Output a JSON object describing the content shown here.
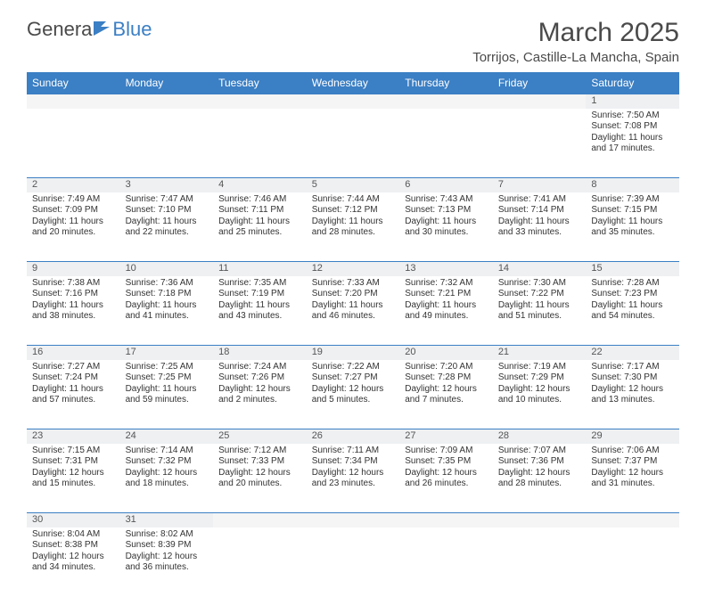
{
  "logo": {
    "part1": "Genera",
    "part2": "Blue"
  },
  "title": "March 2025",
  "location": "Torrijos, Castille-La Mancha, Spain",
  "colors": {
    "header_bg": "#3b7fc4",
    "header_text": "#ffffff",
    "daynum_bg": "#eef0f2",
    "border": "#3b7fc4",
    "text": "#333333",
    "title_text": "#4a4a4a"
  },
  "weekdays": [
    "Sunday",
    "Monday",
    "Tuesday",
    "Wednesday",
    "Thursday",
    "Friday",
    "Saturday"
  ],
  "weeks": [
    [
      null,
      null,
      null,
      null,
      null,
      null,
      {
        "n": "1",
        "sr": "Sunrise: 7:50 AM",
        "ss": "Sunset: 7:08 PM",
        "d1": "Daylight: 11 hours",
        "d2": "and 17 minutes."
      }
    ],
    [
      {
        "n": "2",
        "sr": "Sunrise: 7:49 AM",
        "ss": "Sunset: 7:09 PM",
        "d1": "Daylight: 11 hours",
        "d2": "and 20 minutes."
      },
      {
        "n": "3",
        "sr": "Sunrise: 7:47 AM",
        "ss": "Sunset: 7:10 PM",
        "d1": "Daylight: 11 hours",
        "d2": "and 22 minutes."
      },
      {
        "n": "4",
        "sr": "Sunrise: 7:46 AM",
        "ss": "Sunset: 7:11 PM",
        "d1": "Daylight: 11 hours",
        "d2": "and 25 minutes."
      },
      {
        "n": "5",
        "sr": "Sunrise: 7:44 AM",
        "ss": "Sunset: 7:12 PM",
        "d1": "Daylight: 11 hours",
        "d2": "and 28 minutes."
      },
      {
        "n": "6",
        "sr": "Sunrise: 7:43 AM",
        "ss": "Sunset: 7:13 PM",
        "d1": "Daylight: 11 hours",
        "d2": "and 30 minutes."
      },
      {
        "n": "7",
        "sr": "Sunrise: 7:41 AM",
        "ss": "Sunset: 7:14 PM",
        "d1": "Daylight: 11 hours",
        "d2": "and 33 minutes."
      },
      {
        "n": "8",
        "sr": "Sunrise: 7:39 AM",
        "ss": "Sunset: 7:15 PM",
        "d1": "Daylight: 11 hours",
        "d2": "and 35 minutes."
      }
    ],
    [
      {
        "n": "9",
        "sr": "Sunrise: 7:38 AM",
        "ss": "Sunset: 7:16 PM",
        "d1": "Daylight: 11 hours",
        "d2": "and 38 minutes."
      },
      {
        "n": "10",
        "sr": "Sunrise: 7:36 AM",
        "ss": "Sunset: 7:18 PM",
        "d1": "Daylight: 11 hours",
        "d2": "and 41 minutes."
      },
      {
        "n": "11",
        "sr": "Sunrise: 7:35 AM",
        "ss": "Sunset: 7:19 PM",
        "d1": "Daylight: 11 hours",
        "d2": "and 43 minutes."
      },
      {
        "n": "12",
        "sr": "Sunrise: 7:33 AM",
        "ss": "Sunset: 7:20 PM",
        "d1": "Daylight: 11 hours",
        "d2": "and 46 minutes."
      },
      {
        "n": "13",
        "sr": "Sunrise: 7:32 AM",
        "ss": "Sunset: 7:21 PM",
        "d1": "Daylight: 11 hours",
        "d2": "and 49 minutes."
      },
      {
        "n": "14",
        "sr": "Sunrise: 7:30 AM",
        "ss": "Sunset: 7:22 PM",
        "d1": "Daylight: 11 hours",
        "d2": "and 51 minutes."
      },
      {
        "n": "15",
        "sr": "Sunrise: 7:28 AM",
        "ss": "Sunset: 7:23 PM",
        "d1": "Daylight: 11 hours",
        "d2": "and 54 minutes."
      }
    ],
    [
      {
        "n": "16",
        "sr": "Sunrise: 7:27 AM",
        "ss": "Sunset: 7:24 PM",
        "d1": "Daylight: 11 hours",
        "d2": "and 57 minutes."
      },
      {
        "n": "17",
        "sr": "Sunrise: 7:25 AM",
        "ss": "Sunset: 7:25 PM",
        "d1": "Daylight: 11 hours",
        "d2": "and 59 minutes."
      },
      {
        "n": "18",
        "sr": "Sunrise: 7:24 AM",
        "ss": "Sunset: 7:26 PM",
        "d1": "Daylight: 12 hours",
        "d2": "and 2 minutes."
      },
      {
        "n": "19",
        "sr": "Sunrise: 7:22 AM",
        "ss": "Sunset: 7:27 PM",
        "d1": "Daylight: 12 hours",
        "d2": "and 5 minutes."
      },
      {
        "n": "20",
        "sr": "Sunrise: 7:20 AM",
        "ss": "Sunset: 7:28 PM",
        "d1": "Daylight: 12 hours",
        "d2": "and 7 minutes."
      },
      {
        "n": "21",
        "sr": "Sunrise: 7:19 AM",
        "ss": "Sunset: 7:29 PM",
        "d1": "Daylight: 12 hours",
        "d2": "and 10 minutes."
      },
      {
        "n": "22",
        "sr": "Sunrise: 7:17 AM",
        "ss": "Sunset: 7:30 PM",
        "d1": "Daylight: 12 hours",
        "d2": "and 13 minutes."
      }
    ],
    [
      {
        "n": "23",
        "sr": "Sunrise: 7:15 AM",
        "ss": "Sunset: 7:31 PM",
        "d1": "Daylight: 12 hours",
        "d2": "and 15 minutes."
      },
      {
        "n": "24",
        "sr": "Sunrise: 7:14 AM",
        "ss": "Sunset: 7:32 PM",
        "d1": "Daylight: 12 hours",
        "d2": "and 18 minutes."
      },
      {
        "n": "25",
        "sr": "Sunrise: 7:12 AM",
        "ss": "Sunset: 7:33 PM",
        "d1": "Daylight: 12 hours",
        "d2": "and 20 minutes."
      },
      {
        "n": "26",
        "sr": "Sunrise: 7:11 AM",
        "ss": "Sunset: 7:34 PM",
        "d1": "Daylight: 12 hours",
        "d2": "and 23 minutes."
      },
      {
        "n": "27",
        "sr": "Sunrise: 7:09 AM",
        "ss": "Sunset: 7:35 PM",
        "d1": "Daylight: 12 hours",
        "d2": "and 26 minutes."
      },
      {
        "n": "28",
        "sr": "Sunrise: 7:07 AM",
        "ss": "Sunset: 7:36 PM",
        "d1": "Daylight: 12 hours",
        "d2": "and 28 minutes."
      },
      {
        "n": "29",
        "sr": "Sunrise: 7:06 AM",
        "ss": "Sunset: 7:37 PM",
        "d1": "Daylight: 12 hours",
        "d2": "and 31 minutes."
      }
    ],
    [
      {
        "n": "30",
        "sr": "Sunrise: 8:04 AM",
        "ss": "Sunset: 8:38 PM",
        "d1": "Daylight: 12 hours",
        "d2": "and 34 minutes."
      },
      {
        "n": "31",
        "sr": "Sunrise: 8:02 AM",
        "ss": "Sunset: 8:39 PM",
        "d1": "Daylight: 12 hours",
        "d2": "and 36 minutes."
      },
      null,
      null,
      null,
      null,
      null
    ]
  ]
}
